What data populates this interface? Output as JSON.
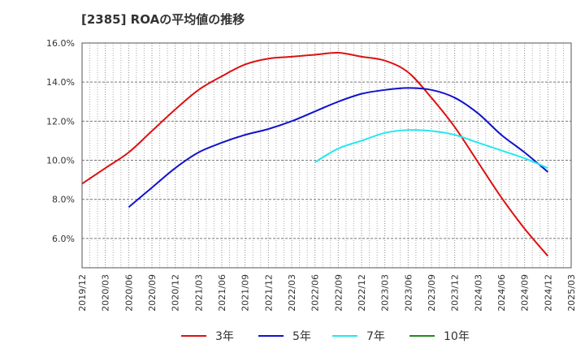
{
  "chart_data": {
    "type": "line",
    "title": "[2385]  ROAの平均値の推移",
    "xlabel": "",
    "ylabel": "",
    "ylim": [
      4.5,
      16.0
    ],
    "grid": true,
    "legend_position": "bottom",
    "y_ticks": [
      "6.0%",
      "8.0%",
      "10.0%",
      "12.0%",
      "14.0%",
      "16.0%"
    ],
    "y_tick_values": [
      6,
      8,
      10,
      12,
      14,
      16
    ],
    "x_ticks": [
      "2019/12",
      "2020/03",
      "2020/06",
      "2020/09",
      "2020/12",
      "2021/03",
      "2021/06",
      "2021/09",
      "2021/12",
      "2022/03",
      "2022/06",
      "2022/09",
      "2022/12",
      "2023/03",
      "2023/06",
      "2023/09",
      "2023/12",
      "2024/03",
      "2024/06",
      "2024/09",
      "2024/12",
      "2025/03"
    ],
    "series": [
      {
        "name": "3年",
        "color": "#dd1111",
        "x": [
          "2019/12",
          "2020/03",
          "2020/06",
          "2020/09",
          "2020/12",
          "2021/03",
          "2021/06",
          "2021/09",
          "2021/12",
          "2022/03",
          "2022/06",
          "2022/09",
          "2022/12",
          "2023/03",
          "2023/06",
          "2023/09",
          "2023/12",
          "2024/03",
          "2024/06",
          "2024/09",
          "2024/12"
        ],
        "values": [
          8.8,
          9.6,
          10.4,
          11.5,
          12.6,
          13.6,
          14.3,
          14.9,
          15.2,
          15.3,
          15.4,
          15.5,
          15.3,
          15.1,
          14.5,
          13.2,
          11.7,
          9.9,
          8.1,
          6.5,
          5.1
        ]
      },
      {
        "name": "5年",
        "color": "#1111cc",
        "x": [
          "2020/06",
          "2020/09",
          "2020/12",
          "2021/03",
          "2021/06",
          "2021/09",
          "2021/12",
          "2022/03",
          "2022/06",
          "2022/09",
          "2022/12",
          "2023/03",
          "2023/06",
          "2023/09",
          "2023/12",
          "2024/03",
          "2024/06",
          "2024/09",
          "2024/12"
        ],
        "values": [
          7.6,
          8.6,
          9.6,
          10.4,
          10.9,
          11.3,
          11.6,
          12.0,
          12.5,
          13.0,
          13.4,
          13.6,
          13.7,
          13.6,
          13.2,
          12.4,
          11.3,
          10.4,
          9.4
        ]
      },
      {
        "name": "7年",
        "color": "#22e8ee",
        "x": [
          "2022/06",
          "2022/09",
          "2022/12",
          "2023/03",
          "2023/06",
          "2023/09",
          "2023/12",
          "2024/03",
          "2024/06",
          "2024/09",
          "2024/12"
        ],
        "values": [
          9.9,
          10.6,
          11.0,
          11.4,
          11.55,
          11.5,
          11.3,
          10.9,
          10.5,
          10.1,
          9.6
        ]
      },
      {
        "name": "10年",
        "color": "#228822",
        "x": [],
        "values": []
      }
    ]
  }
}
